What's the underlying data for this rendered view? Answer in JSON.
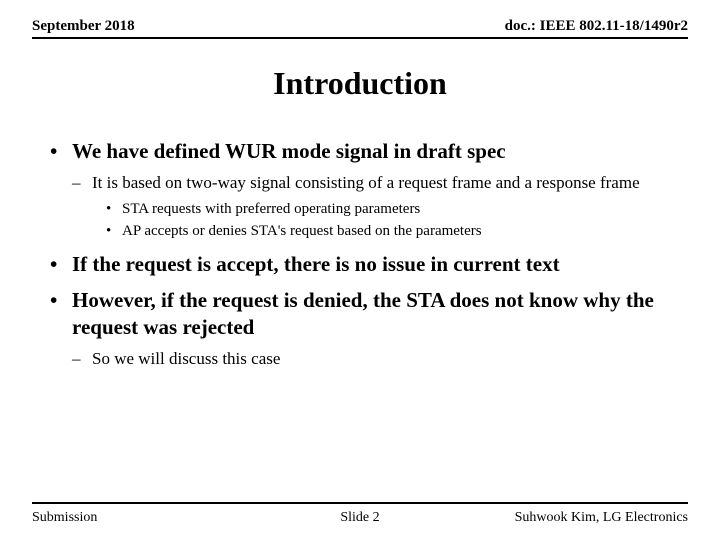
{
  "header": {
    "date": "September 2018",
    "doc": "doc.: IEEE 802.11-18/1490r2"
  },
  "title": "Introduction",
  "bullets": {
    "b1": "We have defined WUR mode signal in draft spec",
    "b1_1": "It is based on two-way signal consisting of a request frame and a response frame",
    "b1_1_1": "STA requests with preferred operating parameters",
    "b1_1_2": "AP accepts or denies STA's request based on the parameters",
    "b2": "If the request is accept, there is no issue in current text",
    "b3": "However, if the request is denied, the STA does not know why the request was rejected",
    "b3_1": "So we will discuss this case"
  },
  "footer": {
    "left": "Submission",
    "center": "Slide 2",
    "right": "Suhwook Kim, LG Electronics"
  },
  "colors": {
    "text": "#000000",
    "background": "#ffffff",
    "rule": "#000000"
  },
  "typography": {
    "family": "Times New Roman",
    "title_size_pt": 32,
    "l1_size_pt": 21,
    "l2_size_pt": 17,
    "l3_size_pt": 15,
    "header_size_pt": 15,
    "footer_size_pt": 14
  }
}
